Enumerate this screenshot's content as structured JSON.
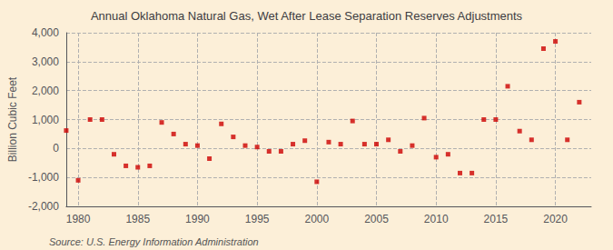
{
  "chart_data": {
    "type": "scatter",
    "title": "Annual Oklahoma Natural Gas, Wet After Lease Separation Reserves Adjustments",
    "ylabel": "Billion Cubic Feet",
    "annotation": "Source: U.S. Energy Information Administration",
    "x": [
      1979,
      1980,
      1981,
      1982,
      1983,
      1984,
      1985,
      1986,
      1987,
      1988,
      1989,
      1990,
      1991,
      1992,
      1993,
      1994,
      1995,
      1996,
      1997,
      1998,
      1999,
      2000,
      2001,
      2002,
      2003,
      2004,
      2005,
      2006,
      2007,
      2008,
      2009,
      2010,
      2011,
      2012,
      2013,
      2014,
      2015,
      2016,
      2017,
      2018,
      2019,
      2020,
      2021,
      2022
    ],
    "values": [
      620,
      -1100,
      1000,
      1000,
      -200,
      -600,
      -650,
      -600,
      900,
      500,
      150,
      100,
      -350,
      850,
      400,
      100,
      50,
      -100,
      -100,
      150,
      270,
      -1150,
      220,
      150,
      950,
      150,
      150,
      300,
      -100,
      100,
      1050,
      -300,
      -200,
      -850,
      -850,
      1000,
      1000,
      2150,
      600,
      300,
      3450,
      3700,
      300,
      1600
    ],
    "color": "#cc0000",
    "marker": "square",
    "xlim": [
      1979,
      2023
    ],
    "xticks": [
      1980,
      1985,
      1990,
      1995,
      2000,
      2005,
      2010,
      2015,
      2020
    ],
    "ylim": [
      -2000,
      4000
    ],
    "yticks": [
      {
        "value": -2000,
        "label": "-2,000"
      },
      {
        "value": -1000,
        "label": "-1,000"
      },
      0,
      {
        "value": 1000,
        "label": "1,000"
      },
      {
        "value": 2000,
        "label": "2,000"
      },
      {
        "value": 3000,
        "label": "3,000"
      },
      {
        "value": 4000,
        "label": "4,000"
      }
    ],
    "grid": true
  }
}
